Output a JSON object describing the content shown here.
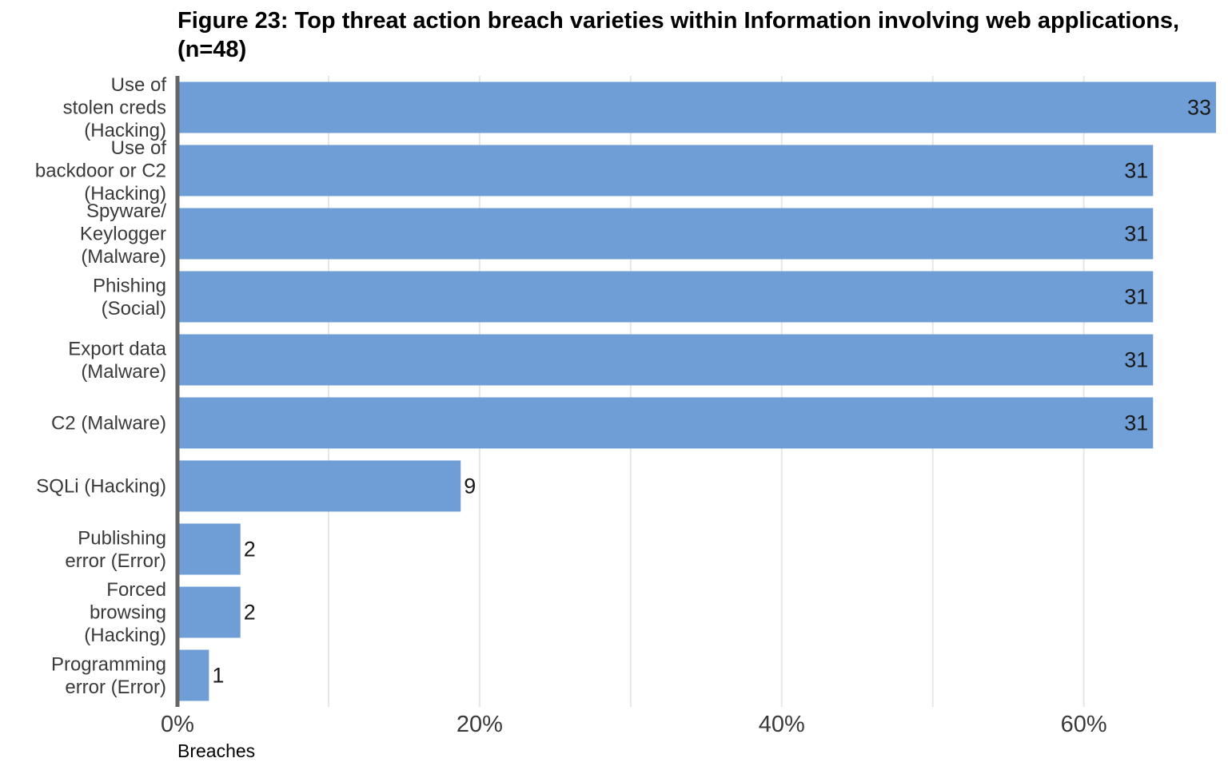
{
  "chart_data": {
    "type": "bar",
    "orientation": "horizontal",
    "title": "Figure 23: Top threat action breach varieties within Information involving web applications, (n=48)",
    "xlabel": "Breaches",
    "ylabel": "",
    "n": 48,
    "categories": [
      [
        "Use of",
        "stolen creds",
        "(Hacking)"
      ],
      [
        "Use of",
        "backdoor or C2",
        "(Hacking)"
      ],
      [
        "Spyware/",
        "Keylogger",
        "(Malware)"
      ],
      [
        "Phishing",
        "(Social)"
      ],
      [
        "Export data",
        "(Malware)"
      ],
      [
        "C2 (Malware)"
      ],
      [
        "SQLi (Hacking)"
      ],
      [
        "Publishing",
        "error (Error)"
      ],
      [
        "Forced",
        "browsing",
        "(Hacking)"
      ],
      [
        "Programming",
        "error (Error)"
      ]
    ],
    "values": [
      33,
      31,
      31,
      31,
      31,
      31,
      9,
      2,
      2,
      1
    ],
    "xlim": [
      0,
      0.6875
    ],
    "x_ticks": [
      0,
      0.2,
      0.4,
      0.6
    ],
    "x_tick_labels": [
      "0%",
      "20%",
      "40%",
      "60%"
    ],
    "grid": true,
    "colors": {
      "bar": "#6f9dd5",
      "grid": "#e6e6e6",
      "axis": "#666666"
    }
  }
}
